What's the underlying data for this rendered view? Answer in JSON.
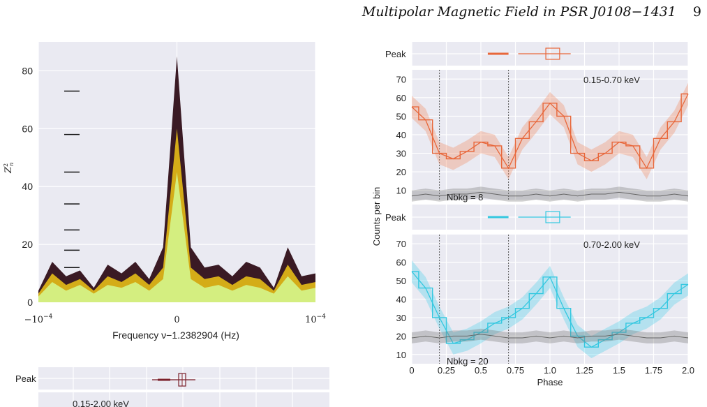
{
  "header": {
    "running_title": "Multipolar Magnetic Field in PSR J0108−1431",
    "page_number": "9"
  },
  "left_figure": {
    "ylabel": "Z",
    "ylabel_sup": "2",
    "ylabel_sub": "n",
    "xlabel": "Frequency ν−1.2382904 (Hz)",
    "ytick_labels": [
      "0",
      "20",
      "40",
      "60",
      "80"
    ],
    "xtick_labels": [
      "−10",
      "0",
      "10"
    ],
    "xtick_exp": "−4"
  },
  "bottom_figure": {
    "peak_label": "Peak",
    "band_label": "0.15-2.00 keV"
  },
  "right_figure": {
    "ylabel": "Counts per bin",
    "xlabel": "Phase",
    "top_panel": {
      "peak_label": "Peak",
      "band_label": "0.15-0.70 keV",
      "nbkg_label": "Nbkg = 8",
      "ytick_labels": [
        "10",
        "20",
        "30",
        "40",
        "50",
        "60",
        "70"
      ]
    },
    "bottom_panel": {
      "peak_label": "Peak",
      "band_label": "0.70-2.00 keV",
      "nbkg_label": "Nbkg = 20",
      "ytick_labels": [
        "10",
        "20",
        "30",
        "40",
        "50",
        "60",
        "70"
      ]
    },
    "xtick_labels": [
      "0",
      "0.25",
      "0.5",
      "0.75",
      "1.0",
      "1.25",
      "1.5",
      "1.75",
      "2.0"
    ]
  },
  "chart_data": [
    {
      "type": "area",
      "xlabel": "Frequency ν−1.2382904 (Hz)",
      "ylabel": "Z_n^2",
      "xlim": [
        -0.0001,
        0.0001
      ],
      "ylim": [
        0,
        90
      ],
      "grid": true,
      "x": [
        -0.0001,
        -9e-05,
        -8e-05,
        -7e-05,
        -6e-05,
        -5e-05,
        -4e-05,
        -3e-05,
        -2e-05,
        -1e-05,
        0,
        1e-05,
        2e-05,
        3e-05,
        4e-05,
        5e-05,
        6e-05,
        7e-05,
        8e-05,
        9e-05,
        0.0001
      ],
      "series": [
        {
          "values": [
            4,
            14,
            9,
            11,
            5,
            13,
            10,
            14,
            8,
            19,
            85,
            19,
            12,
            13,
            9,
            14,
            12,
            5,
            19,
            9,
            10
          ]
        },
        {
          "values": [
            3,
            10,
            6,
            8,
            4,
            9,
            7,
            10,
            6,
            12,
            60,
            12,
            8,
            9,
            6,
            9,
            8,
            4,
            13,
            6,
            7
          ]
        },
        {
          "values": [
            2,
            7,
            4,
            6,
            3,
            6,
            5,
            7,
            4,
            8,
            45,
            8,
            5,
            6,
            4,
            6,
            5,
            3,
            9,
            4,
            5
          ]
        }
      ],
      "horizontal_markers": [
        73,
        58,
        45,
        34,
        25,
        18,
        12
      ]
    },
    {
      "type": "line",
      "xlabel": "Phase",
      "ylabel": "Counts per bin",
      "xlim": [
        0,
        2
      ],
      "ylim": [
        5,
        75
      ],
      "grid": true,
      "annotations": [
        "0.15-0.70 keV",
        "Nbkg = 8"
      ],
      "vertical_lines": [
        0.2,
        0.7
      ],
      "x": [
        0,
        0.1,
        0.2,
        0.3,
        0.4,
        0.5,
        0.6,
        0.7,
        0.8,
        0.9,
        1.0,
        1.1,
        1.2,
        1.3,
        1.4,
        1.5,
        1.6,
        1.7,
        1.8,
        1.9,
        2.0
      ],
      "series": [
        {
          "values": [
            55,
            48,
            30,
            27,
            31,
            36,
            34,
            22,
            38,
            47,
            57,
            50,
            30,
            26,
            30,
            36,
            34,
            22,
            38,
            47,
            62
          ]
        },
        {
          "values": [
            7,
            8,
            7,
            8,
            8,
            9,
            8,
            7,
            7,
            8,
            7,
            8,
            7,
            8,
            8,
            9,
            8,
            7,
            7,
            8,
            7
          ]
        }
      ],
      "peak_range": [
        0.95,
        1.05
      ]
    },
    {
      "type": "line",
      "xlabel": "Phase",
      "ylabel": "Counts per bin",
      "xlim": [
        0,
        2
      ],
      "ylim": [
        5,
        75
      ],
      "grid": true,
      "annotations": [
        "0.70-2.00 keV",
        "Nbkg = 20"
      ],
      "vertical_lines": [
        0.2,
        0.7
      ],
      "x": [
        0,
        0.1,
        0.2,
        0.3,
        0.4,
        0.5,
        0.6,
        0.7,
        0.8,
        0.9,
        1.0,
        1.1,
        1.2,
        1.3,
        1.4,
        1.5,
        1.6,
        1.7,
        1.8,
        1.9,
        2.0
      ],
      "series": [
        {
          "values": [
            55,
            46,
            30,
            16,
            18,
            22,
            27,
            30,
            35,
            43,
            52,
            35,
            20,
            14,
            18,
            22,
            27,
            30,
            35,
            43,
            48
          ]
        },
        {
          "values": [
            19,
            20,
            19,
            20,
            20,
            21,
            20,
            19,
            19,
            20,
            19,
            20,
            19,
            20,
            20,
            21,
            20,
            19,
            19,
            20,
            19
          ]
        }
      ],
      "peak_range": [
        0.95,
        1.05
      ]
    }
  ]
}
